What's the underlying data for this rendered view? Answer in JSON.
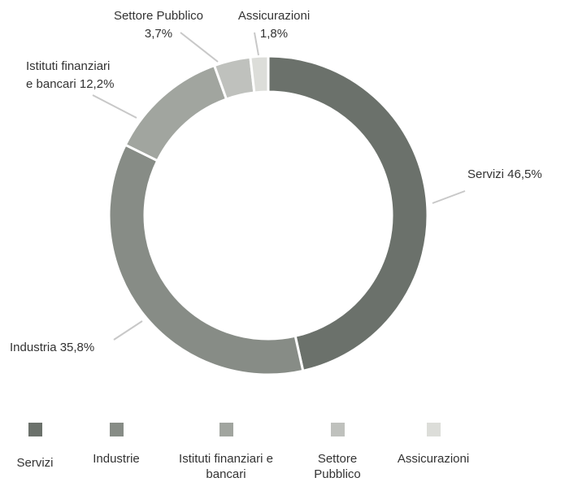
{
  "chart_data": {
    "type": "pie",
    "categories": [
      "Servizi",
      "Industrie",
      "Istituti finanziari e bancari",
      "Settore Pubblico",
      "Assicurazioni"
    ],
    "values": [
      46.5,
      35.8,
      12.2,
      3.7,
      1.8
    ],
    "value_labels": [
      [
        "Servizi 46,5%"
      ],
      [
        "Industria 35,8%"
      ],
      [
        "Istituti finanziari",
        "e bancari 12,2%"
      ],
      [
        "Settore Pubblico",
        "3,7%"
      ],
      [
        "Assicurazioni",
        "1,8%"
      ]
    ],
    "colors": [
      "#6b716b",
      "#878c86",
      "#a1a59f",
      "#bfc1bd",
      "#dcddd9"
    ],
    "legend": "bottom"
  }
}
